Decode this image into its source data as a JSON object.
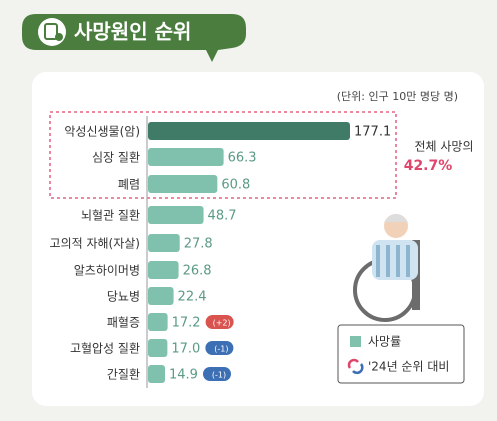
{
  "chart_data": {
    "type": "bar",
    "title": "사망원인 순위",
    "unit_note": "(단위: 인구 10만 명당 명)",
    "categories": [
      "악성신생물(암)",
      "심장 질환",
      "폐렴",
      "뇌혈관 질환",
      "고의적 자해(자살)",
      "알츠하이머병",
      "당뇨병",
      "패혈증",
      "고혈압성 질환",
      "간질환"
    ],
    "values": [
      177.1,
      66.3,
      60.8,
      48.7,
      27.8,
      26.8,
      22.4,
      17.2,
      17.0,
      14.9
    ],
    "value_labels": [
      "177.1",
      "66.3",
      "60.8",
      "48.7",
      "27.8",
      "26.8",
      "22.4",
      "17.2",
      "17.0",
      "14.9"
    ],
    "rank_change": [
      null,
      null,
      null,
      null,
      null,
      null,
      null,
      "(+2)",
      "(-1)",
      "(-1)"
    ],
    "colors": [
      "#3f7b66",
      "#7fc1ad",
      "#7fc1ad",
      "#7fc1ad",
      "#7fc1ad",
      "#7fc1ad",
      "#7fc1ad",
      "#7fc1ad",
      "#7fc1ad",
      "#7fc1ad"
    ],
    "annotation": {
      "text": "전체 사망의",
      "value": "42.7%"
    },
    "legend": {
      "bar": "사망률",
      "rank": "'24년 순위 대비"
    }
  }
}
